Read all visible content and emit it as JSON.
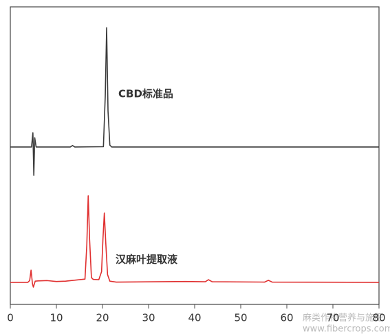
{
  "chart_data": {
    "type": "line",
    "annotations": [
      "CBD标准品",
      "汉麻叶提取液"
    ],
    "watermark": [
      "麻类作物营养与施肥",
      "www.fibercrops.com"
    ],
    "series": [
      {
        "color": "#3a3a3a",
        "x": [
          0,
          4.6,
          4.9,
          5.1,
          5.3,
          5.6,
          6,
          13,
          13.5,
          14,
          20.2,
          20.6,
          20.9,
          21.2,
          21.6,
          22,
          80
        ],
        "values": [
          52.9,
          52.9,
          57.7,
          43.4,
          56,
          52.9,
          52.9,
          52.9,
          53.4,
          52.9,
          53,
          70,
          93,
          65,
          53.5,
          52.9,
          52.9
        ]
      },
      {
        "color": "#e03030",
        "x": [
          0,
          3.8,
          4.2,
          4.5,
          4.8,
          5.0,
          5.4,
          6,
          8,
          10,
          12,
          16.2,
          16.6,
          16.9,
          17.2,
          17.6,
          18,
          19.2,
          19.8,
          20.1,
          20.4,
          20.7,
          21.1,
          21.6,
          23,
          38,
          42.3,
          43,
          43.8,
          55.2,
          56,
          56.8,
          80
        ],
        "values": [
          7.4,
          7.4,
          8,
          11.5,
          7,
          5.8,
          7.8,
          7.9,
          8,
          7.7,
          7.8,
          8.5,
          20,
          36.5,
          22,
          9,
          8.4,
          8.3,
          11,
          22,
          30.7,
          21,
          10,
          7.8,
          7.5,
          7.7,
          7.6,
          8.3,
          7.6,
          7.5,
          8.1,
          7.5,
          7.4
        ]
      }
    ],
    "xlim": [
      0,
      80
    ],
    "xticks": [
      0,
      10,
      20,
      30,
      40,
      50,
      60,
      70,
      80
    ],
    "ylim": [
      0,
      100
    ]
  }
}
